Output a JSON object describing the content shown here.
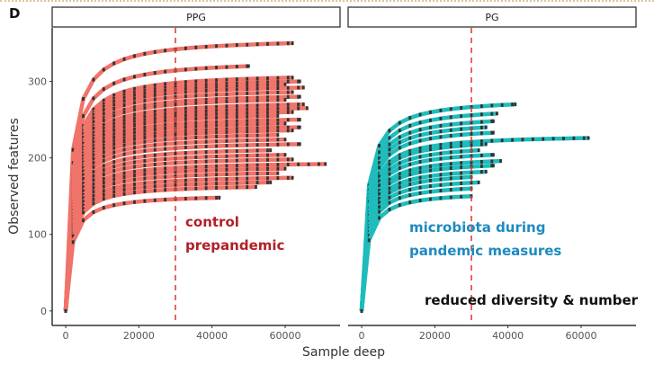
{
  "panel_label": "D",
  "chart_data": {
    "type": "line",
    "xlabel": "Sample deep",
    "ylabel": "Observed features",
    "xlim": [
      -3700,
      75000
    ],
    "ylim": [
      -19,
      370
    ],
    "xticks": [
      0,
      20000,
      40000,
      60000
    ],
    "yticks": [
      0,
      100,
      200,
      300
    ],
    "grid": false,
    "reference_line_x": 30000,
    "colors": {
      "PPG": "#f0746a",
      "PG": "#1fbcbc",
      "reference": "#e0403a",
      "points": "#333333"
    },
    "panels": [
      {
        "name": "PPG",
        "annotation": [
          "control",
          "prepandemic"
        ],
        "annotation_color": "#b22028",
        "series": [
          {
            "asymptote": 350,
            "max_depth": 62000
          },
          {
            "asymptote": 320,
            "max_depth": 50000
          },
          {
            "asymptote": 305,
            "max_depth": 62000
          },
          {
            "asymptote": 300,
            "max_depth": 64000
          },
          {
            "asymptote": 296,
            "max_depth": 60000
          },
          {
            "asymptote": 292,
            "max_depth": 65000
          },
          {
            "asymptote": 286,
            "max_depth": 62000
          },
          {
            "asymptote": 280,
            "max_depth": 64000
          },
          {
            "asymptote": 276,
            "max_depth": 60000
          },
          {
            "asymptote": 270,
            "max_depth": 65000
          },
          {
            "asymptote": 265,
            "max_depth": 66000
          },
          {
            "asymptote": 260,
            "max_depth": 62000
          },
          {
            "asymptote": 255,
            "max_depth": 58000
          },
          {
            "asymptote": 250,
            "max_depth": 64000
          },
          {
            "asymptote": 245,
            "max_depth": 60000
          },
          {
            "asymptote": 240,
            "max_depth": 64000
          },
          {
            "asymptote": 236,
            "max_depth": 62000
          },
          {
            "asymptote": 230,
            "max_depth": 58000
          },
          {
            "asymptote": 224,
            "max_depth": 60000
          },
          {
            "asymptote": 218,
            "max_depth": 64000
          },
          {
            "asymptote": 210,
            "max_depth": 56000
          },
          {
            "asymptote": 204,
            "max_depth": 60000
          },
          {
            "asymptote": 198,
            "max_depth": 62000
          },
          {
            "asymptote": 192,
            "max_depth": 71000
          },
          {
            "asymptote": 186,
            "max_depth": 60000
          },
          {
            "asymptote": 180,
            "max_depth": 58000
          },
          {
            "asymptote": 174,
            "max_depth": 62000
          },
          {
            "asymptote": 168,
            "max_depth": 56000
          },
          {
            "asymptote": 162,
            "max_depth": 52000
          },
          {
            "asymptote": 148,
            "max_depth": 42000
          }
        ]
      },
      {
        "name": "PG",
        "annotation": [
          "microbiota during",
          "pandemic measures"
        ],
        "annotation_color": "#1e8ac0",
        "note": "reduced diversity & number",
        "series": [
          {
            "asymptote": 270,
            "max_depth": 42000
          },
          {
            "asymptote": 258,
            "max_depth": 37000
          },
          {
            "asymptote": 248,
            "max_depth": 36000
          },
          {
            "asymptote": 240,
            "max_depth": 34000
          },
          {
            "asymptote": 233,
            "max_depth": 36000
          },
          {
            "asymptote": 226,
            "max_depth": 62000
          },
          {
            "asymptote": 218,
            "max_depth": 34000
          },
          {
            "asymptote": 210,
            "max_depth": 32000
          },
          {
            "asymptote": 204,
            "max_depth": 36000
          },
          {
            "asymptote": 196,
            "max_depth": 38000
          },
          {
            "asymptote": 190,
            "max_depth": 36000
          },
          {
            "asymptote": 182,
            "max_depth": 34000
          },
          {
            "asymptote": 175,
            "max_depth": 30000
          },
          {
            "asymptote": 168,
            "max_depth": 32000
          },
          {
            "asymptote": 160,
            "max_depth": 30000
          },
          {
            "asymptote": 150,
            "max_depth": 30000
          }
        ]
      }
    ]
  }
}
